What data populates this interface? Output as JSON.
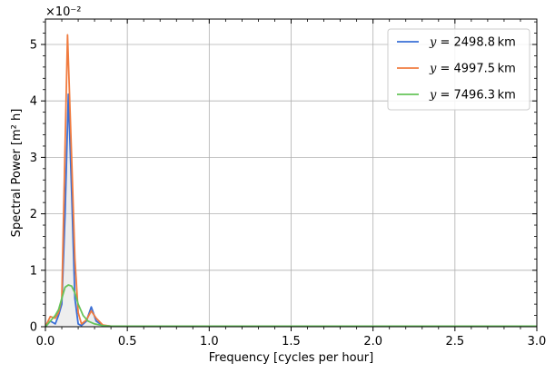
{
  "chart_data": {
    "type": "line",
    "xlabel": "Frequency [cycles per hour]",
    "ylabel": "Spectral Power [m² h]",
    "offset_label": "×10⁻²",
    "xlim": [
      0,
      3.0
    ],
    "ylim": [
      0,
      5.45
    ],
    "y_scale_exponent": -2,
    "grid": true,
    "legend_position": "upper right",
    "xticks": [
      0.0,
      0.5,
      1.0,
      1.5,
      2.0,
      2.5,
      3.0
    ],
    "xtick_labels": [
      "0.0",
      "0.5",
      "1.0",
      "1.5",
      "2.0",
      "2.5",
      "3.0"
    ],
    "yticks": [
      0,
      1,
      2,
      3,
      4,
      5
    ],
    "ytick_labels": [
      "0",
      "1",
      "2",
      "3",
      "4",
      "5"
    ],
    "series": [
      {
        "name": "y = 2498.8 km",
        "legend_var": "y",
        "legend_value": "= 2498.8 km",
        "color": "#3a6fd6",
        "x": [
          0,
          0.03,
          0.06,
          0.08,
          0.1,
          0.12,
          0.14,
          0.16,
          0.18,
          0.2,
          0.22,
          0.25,
          0.28,
          0.31,
          0.35,
          0.4,
          0.6,
          1.0,
          1.5,
          2.0,
          2.5,
          3.0
        ],
        "y": [
          0.0,
          0.1,
          0.05,
          0.2,
          0.4,
          2.0,
          4.12,
          2.4,
          0.5,
          0.05,
          0.02,
          0.1,
          0.35,
          0.1,
          0.02,
          0.01,
          0.01,
          0.01,
          0.01,
          0.01,
          0.01,
          0.01
        ]
      },
      {
        "name": "y = 4997.5 km",
        "legend_var": "y",
        "legend_value": "= 4997.5 km",
        "color": "#f07b3f",
        "x": [
          0,
          0.03,
          0.06,
          0.08,
          0.1,
          0.12,
          0.135,
          0.16,
          0.18,
          0.2,
          0.22,
          0.25,
          0.28,
          0.31,
          0.35,
          0.4,
          0.6,
          1.0,
          1.5,
          2.0,
          2.5,
          3.0
        ],
        "y": [
          0.0,
          0.18,
          0.15,
          0.25,
          0.5,
          3.2,
          5.17,
          3.0,
          1.2,
          0.25,
          0.05,
          0.12,
          0.28,
          0.15,
          0.03,
          0.01,
          0.01,
          0.01,
          0.01,
          0.01,
          0.01,
          0.01
        ]
      },
      {
        "name": "y = 7496.3 km",
        "legend_var": "y",
        "legend_value": "= 7496.3 km",
        "color": "#66c45a",
        "x": [
          0,
          0.03,
          0.06,
          0.08,
          0.1,
          0.12,
          0.14,
          0.16,
          0.18,
          0.2,
          0.23,
          0.26,
          0.3,
          0.35,
          0.4,
          0.6,
          1.0,
          1.5,
          2.0,
          2.5,
          3.0
        ],
        "y": [
          0.0,
          0.1,
          0.2,
          0.3,
          0.5,
          0.7,
          0.74,
          0.72,
          0.6,
          0.4,
          0.2,
          0.1,
          0.05,
          0.02,
          0.01,
          0.01,
          0.01,
          0.01,
          0.01,
          0.01,
          0.01
        ]
      }
    ]
  }
}
